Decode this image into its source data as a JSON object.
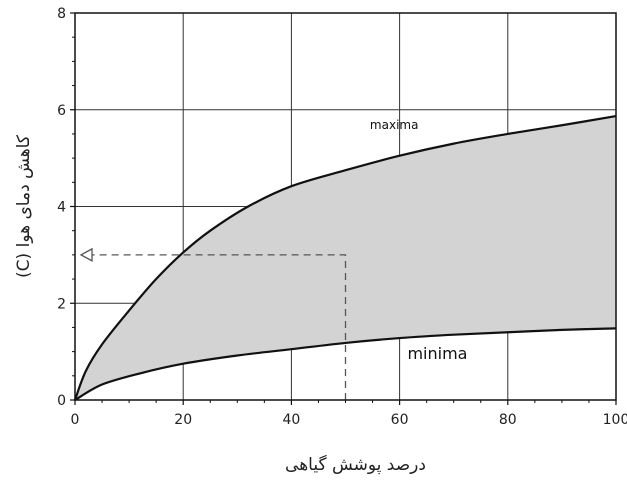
{
  "chart_data": {
    "type": "area",
    "title": "",
    "xlabel": "درصد پوشش گیاهی",
    "ylabel": "کاهش دمای هوا (C)",
    "xlim": [
      0,
      100
    ],
    "ylim": [
      0,
      8
    ],
    "x_ticks": [
      0,
      20,
      40,
      60,
      80,
      100
    ],
    "y_ticks": [
      0,
      2,
      4,
      6,
      8
    ],
    "x_tick_labels": [
      "0",
      "20",
      "40",
      "60",
      "80",
      "100"
    ],
    "y_tick_labels": [
      "0",
      "2",
      "4",
      "6",
      "8"
    ],
    "grid": true,
    "series": [
      {
        "name": "maxima",
        "x": [
          0,
          2,
          5,
          10,
          15,
          20,
          25,
          32,
          40,
          50,
          60,
          70,
          80,
          90,
          100
        ],
        "y": [
          0,
          0.6,
          1.15,
          1.85,
          2.5,
          3.05,
          3.5,
          4.0,
          4.42,
          4.75,
          5.05,
          5.3,
          5.5,
          5.68,
          5.87
        ]
      },
      {
        "name": "minima",
        "x": [
          0,
          5,
          12,
          20,
          30,
          40,
          50,
          60,
          70,
          80,
          90,
          100
        ],
        "y": [
          0,
          0.32,
          0.55,
          0.75,
          0.92,
          1.05,
          1.18,
          1.28,
          1.35,
          1.4,
          1.45,
          1.48
        ]
      }
    ],
    "fill_between": [
      "maxima",
      "minima"
    ],
    "fill_color": "#d3d3d3",
    "guide": {
      "x": 50,
      "y": 3,
      "style": "dashed-arrow"
    },
    "annotations": [
      {
        "text": "maxima",
        "x": 59,
        "y": 5.6
      },
      {
        "text": "minima",
        "x": 67,
        "y": 0.85
      }
    ]
  }
}
